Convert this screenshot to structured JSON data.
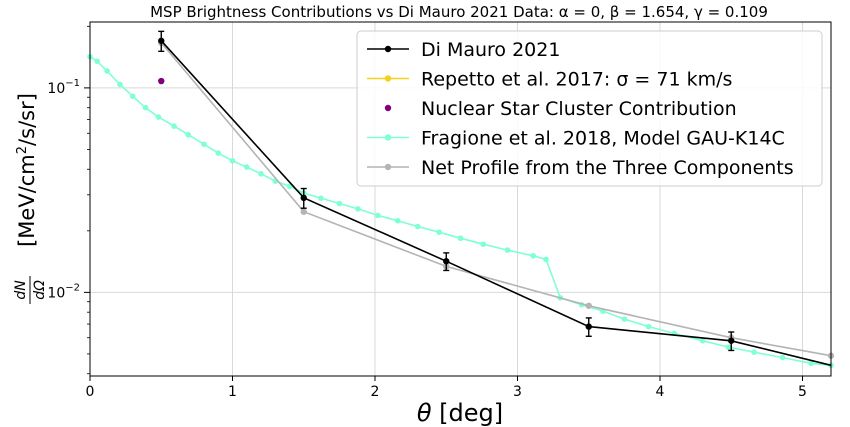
{
  "chart_data": {
    "type": "line",
    "title": "MSP Brightness Contributions vs Di Mauro 2021 Data: α = 0, β = 1.654, γ = 0.109",
    "xlabel": "θ [deg]",
    "ylabel": "dN/dΩ [MeV/cm²/s/sr]",
    "xlim": [
      0,
      5.2
    ],
    "ylim": [
      0.0039,
      0.21
    ],
    "yscale": "log",
    "grid": true,
    "legend_position": "top-right",
    "x_ticks": [
      0,
      1,
      2,
      3,
      4,
      5
    ],
    "x_tick_labels": [
      "0",
      "1",
      "2",
      "3",
      "4",
      "5"
    ],
    "y_tick_labels": [
      {
        "value": 0.1,
        "label": "10",
        "exp": "−1"
      },
      {
        "value": 0.01,
        "label": "10",
        "exp": "−2"
      }
    ],
    "series": [
      {
        "name": "Di Mauro 2021",
        "color": "#000000",
        "marker": "circle",
        "line": true,
        "errorbars": true,
        "x": [
          0.5,
          1.5,
          2.5,
          3.5,
          4.5,
          5.2
        ],
        "y": [
          0.17,
          0.029,
          0.0142,
          0.0068,
          0.0058,
          0.0044
        ],
        "err": [
          0.019,
          0.0032,
          0.0014,
          0.0007,
          0.0006,
          null
        ],
        "marker_shown": [
          true,
          true,
          true,
          true,
          true,
          false
        ]
      },
      {
        "name": "Repetto et al. 2017: σ = 71 km/s",
        "color": "#f2d21b",
        "marker": "circle",
        "line": true,
        "x": [],
        "y": []
      },
      {
        "name": "Nuclear Star Cluster Contribution",
        "color": "#800080",
        "marker": "circle",
        "line": false,
        "x": [
          0.5
        ],
        "y": [
          0.108
        ]
      },
      {
        "name": "Fragione et al. 2018, Model GAU-K14C",
        "color": "#7fffd4",
        "marker": "circle",
        "line": true,
        "x": [
          0.0,
          0.05,
          0.12,
          0.21,
          0.3,
          0.39,
          0.48,
          0.59,
          0.69,
          0.8,
          0.9,
          1.0,
          1.1,
          1.2,
          1.3,
          1.4,
          1.5,
          1.62,
          1.75,
          1.88,
          2.02,
          2.16,
          2.3,
          2.45,
          2.6,
          2.76,
          2.93,
          3.11,
          3.2,
          3.3,
          3.45,
          3.6,
          3.75,
          3.92,
          4.1,
          4.3,
          4.48,
          4.66,
          4.86,
          5.06,
          5.2
        ],
        "y": [
          0.142,
          0.135,
          0.121,
          0.104,
          0.091,
          0.08,
          0.072,
          0.065,
          0.059,
          0.053,
          0.048,
          0.044,
          0.041,
          0.038,
          0.035,
          0.033,
          0.0306,
          0.0289,
          0.0272,
          0.0256,
          0.0238,
          0.0224,
          0.021,
          0.0197,
          0.0184,
          0.0172,
          0.0161,
          0.0151,
          0.0145,
          0.0094,
          0.0087,
          0.0081,
          0.0074,
          0.0068,
          0.0063,
          0.0058,
          0.0054,
          0.0051,
          0.0048,
          0.0045,
          0.0044
        ]
      },
      {
        "name": "Net Profile from the Three Components",
        "color": "#b4b4b4",
        "marker": "circle",
        "line": true,
        "x": [
          0.5,
          1.5,
          2.5,
          3.5,
          4.5,
          5.2
        ],
        "y": [
          0.166,
          0.0248,
          0.0134,
          0.0086,
          0.006,
          0.0049
        ]
      }
    ]
  }
}
